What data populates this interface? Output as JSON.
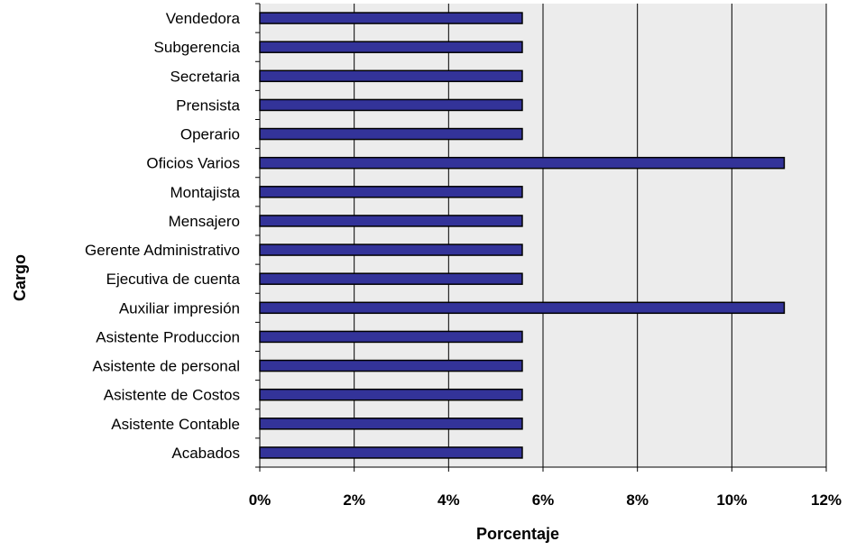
{
  "chart_data": {
    "type": "bar",
    "orientation": "horizontal",
    "title": "",
    "xlabel": "Porcentaje",
    "ylabel": "Cargo",
    "xlim": [
      0,
      12
    ],
    "x_tick_values": [
      0,
      2,
      4,
      6,
      8,
      10,
      12
    ],
    "x_tick_labels": [
      "0%",
      "2%",
      "4%",
      "6%",
      "8%",
      "10%",
      "12%"
    ],
    "grid": true,
    "legend": "none",
    "categories": [
      "Vendedora",
      "Subgerencia",
      "Secretaria",
      "Prensista",
      "Operario",
      "Oficios Varios",
      "Montajista",
      "Mensajero",
      "Gerente Administrativo",
      "Ejecutiva de cuenta",
      "Auxiliar impresión",
      "Asistente Produccion",
      "Asistente de personal",
      "Asistente de Costos",
      "Asistente Contable",
      "Acabados"
    ],
    "values": [
      5.56,
      5.56,
      5.56,
      5.56,
      5.56,
      11.11,
      5.56,
      5.56,
      5.56,
      5.56,
      11.11,
      5.56,
      5.56,
      5.56,
      5.56,
      5.56
    ],
    "colors": {
      "bar_fill": "#333399",
      "bar_stroke": "#000000",
      "plot_background": "#ececec",
      "gridline": "#000000"
    }
  }
}
